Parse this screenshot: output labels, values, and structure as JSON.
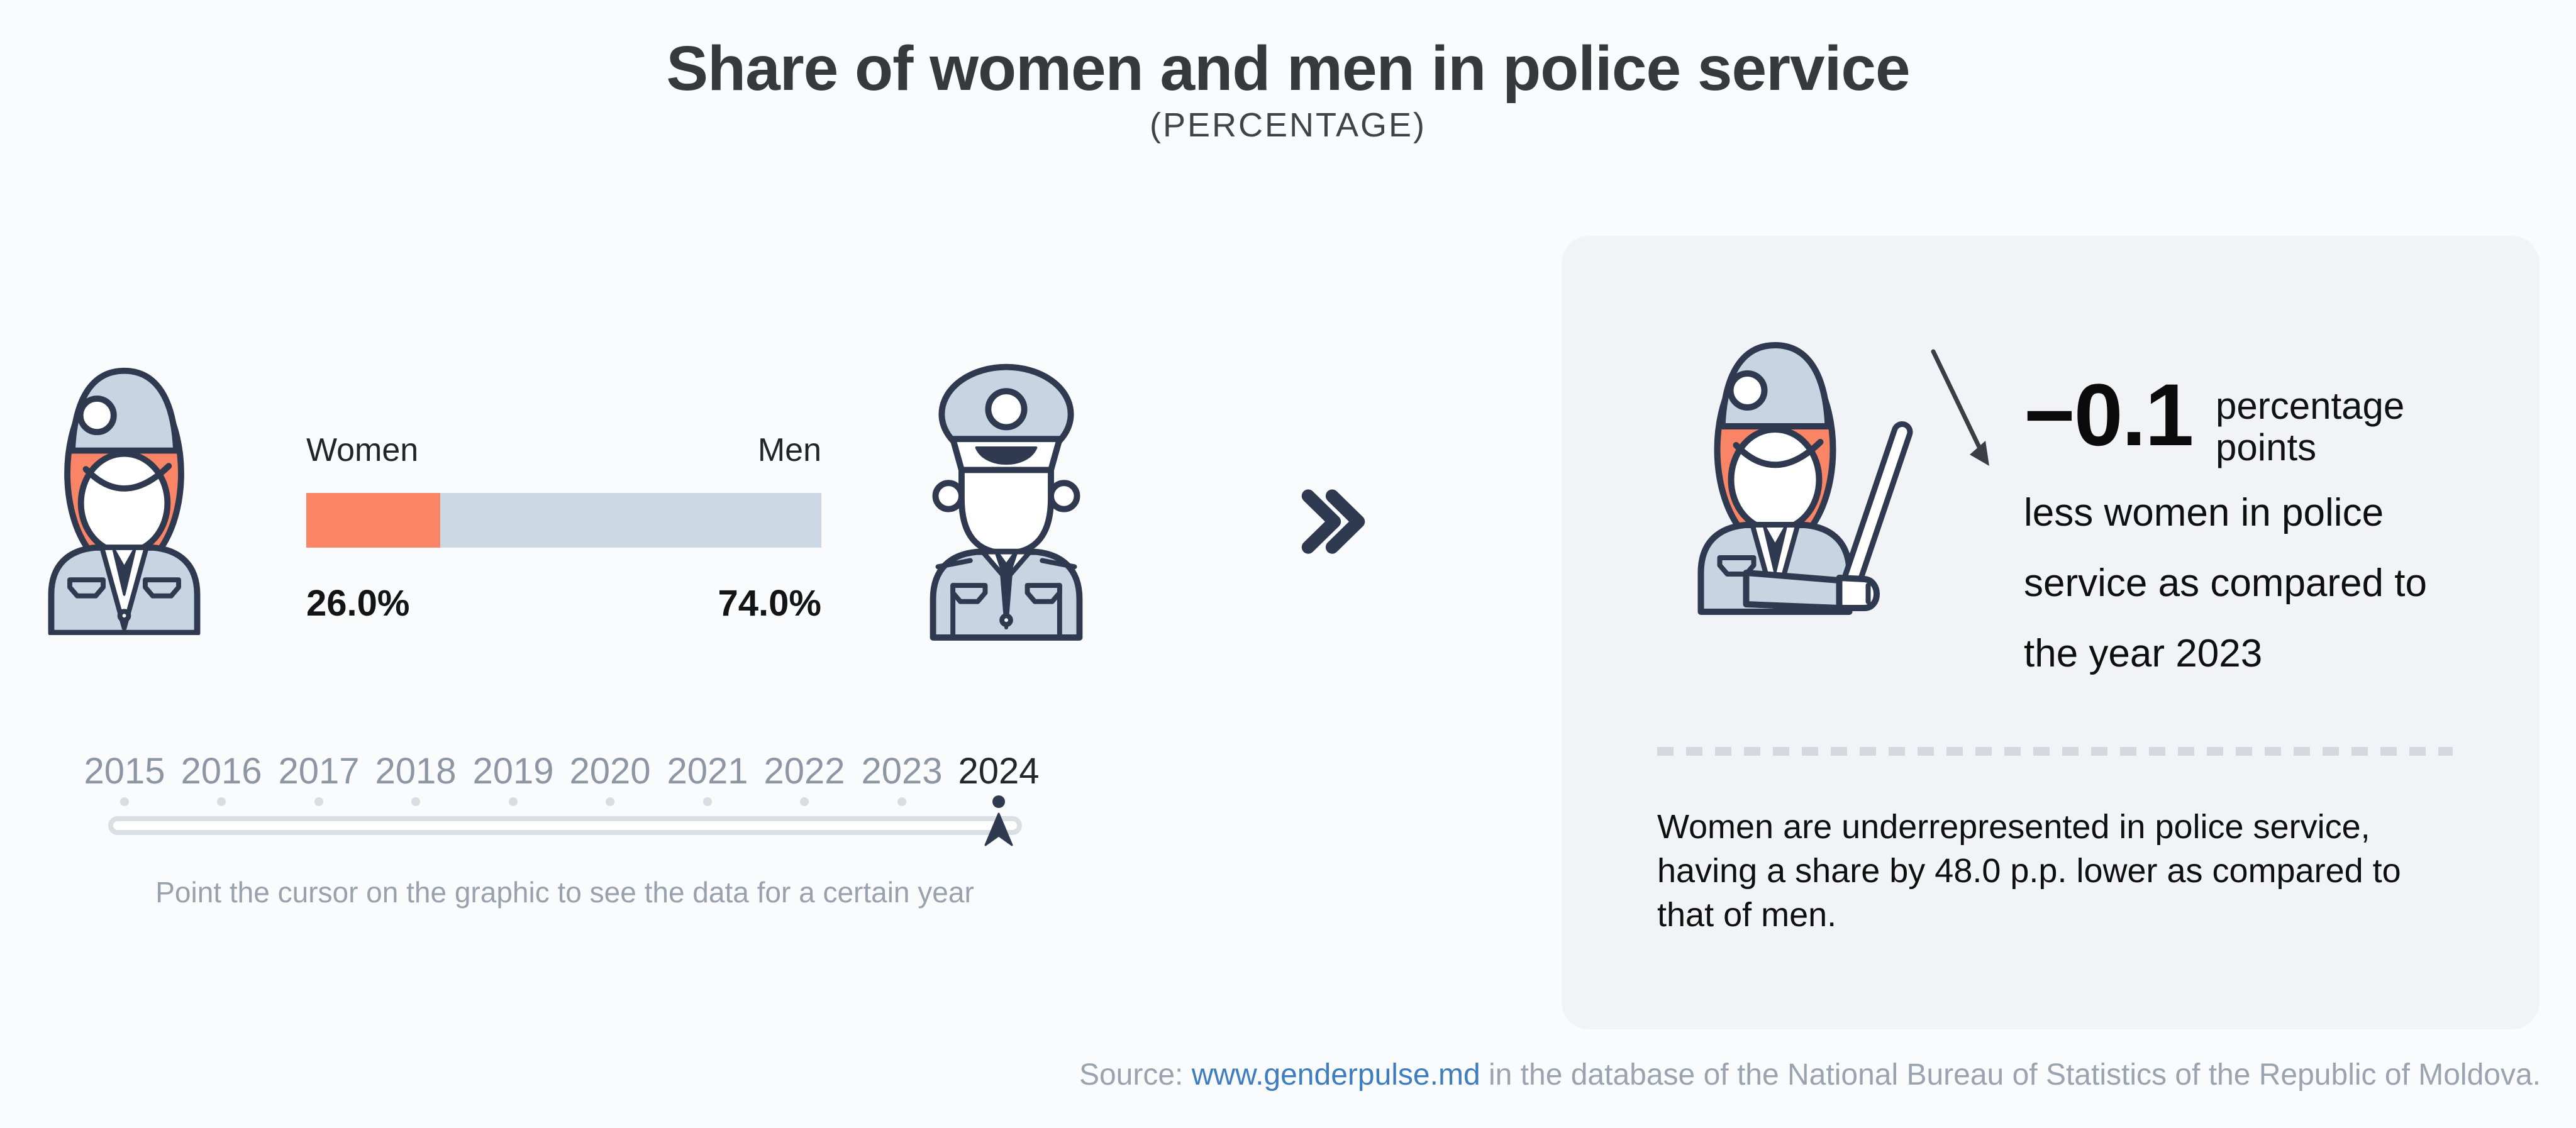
{
  "colors": {
    "background": "#FAFBFC",
    "panel_background": "#F1F3F6",
    "accent_orange": "#FA8566",
    "accent_blue": "#CCD9E5",
    "navy_outline": "#2F3A51",
    "muted_gray": "#8C96A4",
    "link_blue": "#3E7EC0"
  },
  "header": {
    "title": "Share of women and men in police service",
    "subtitle": "(PERCENTAGE)"
  },
  "chart": {
    "women_label": "Women",
    "men_label": "Men",
    "women_value": "26.0%",
    "men_value": "74.0%"
  },
  "chart_data": {
    "type": "bar",
    "title": "Share of women and men in police service",
    "subtitle": "(PERCENTAGE)",
    "unit": "%",
    "categories": [
      "Women",
      "Men"
    ],
    "values": [
      26.0,
      74.0
    ],
    "series_colors": [
      "#FA8566",
      "#CCD9E5"
    ],
    "selected_year": "2024",
    "years": [
      "2015",
      "2016",
      "2017",
      "2018",
      "2019",
      "2020",
      "2021",
      "2022",
      "2023",
      "2024"
    ],
    "change_vs_previous_year_pp": -0.1,
    "gap_between_men_and_women_pp": 48.0,
    "grid": false,
    "legend_position": "above-bar"
  },
  "timeline": {
    "years": [
      "2015",
      "2016",
      "2017",
      "2018",
      "2019",
      "2020",
      "2021",
      "2022",
      "2023",
      "2024"
    ],
    "selected": "2024",
    "hint": "Point the cursor on the graphic to see the data for a certain year"
  },
  "panel": {
    "delta_value": "−0.1",
    "delta_unit": "percentage points",
    "delta_note": "less women in police service as compared to the year 2023",
    "summary": "Women are underrepresented in police service, having a share by 48.0 p.p. lower as compared to that of men."
  },
  "footer": {
    "source_prefix": "Source: ",
    "link_text": "www.genderpulse.md",
    "suffix": " in the database of the National Bureau of Statistics of the Republic of Moldova."
  }
}
